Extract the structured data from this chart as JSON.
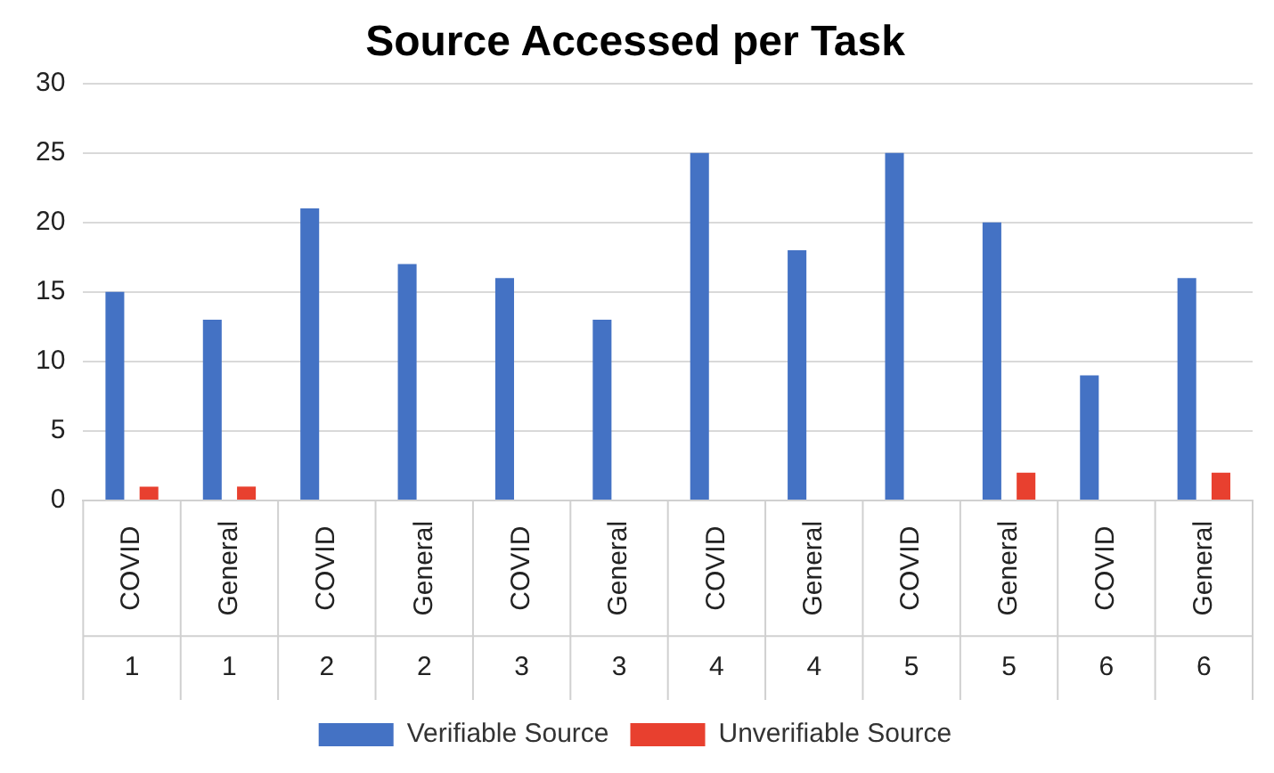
{
  "chart_data": {
    "type": "bar",
    "title": "Source Accessed per Task",
    "categories": [
      "COVID 1",
      "General 1",
      "COVID 2",
      "General 2",
      "COVID 3",
      "General 3",
      "COVID 4",
      "General 4",
      "COVID 5",
      "General 5",
      "COVID 6",
      "General 6"
    ],
    "series": [
      {
        "name": "Verifiable Source",
        "color": "#4472c4",
        "values": [
          15,
          13,
          21,
          17,
          16,
          13,
          25,
          18,
          25,
          20,
          9,
          16
        ]
      },
      {
        "name": "Unverifiable Source",
        "color": "#e8402f",
        "values": [
          1,
          1,
          0,
          0,
          0,
          0,
          0,
          0,
          0,
          2,
          0,
          2
        ]
      }
    ],
    "ylim": [
      0,
      30
    ],
    "yticks": [
      0,
      5,
      10,
      15,
      20,
      25,
      30
    ],
    "grid": "y",
    "legend": "bottom"
  }
}
